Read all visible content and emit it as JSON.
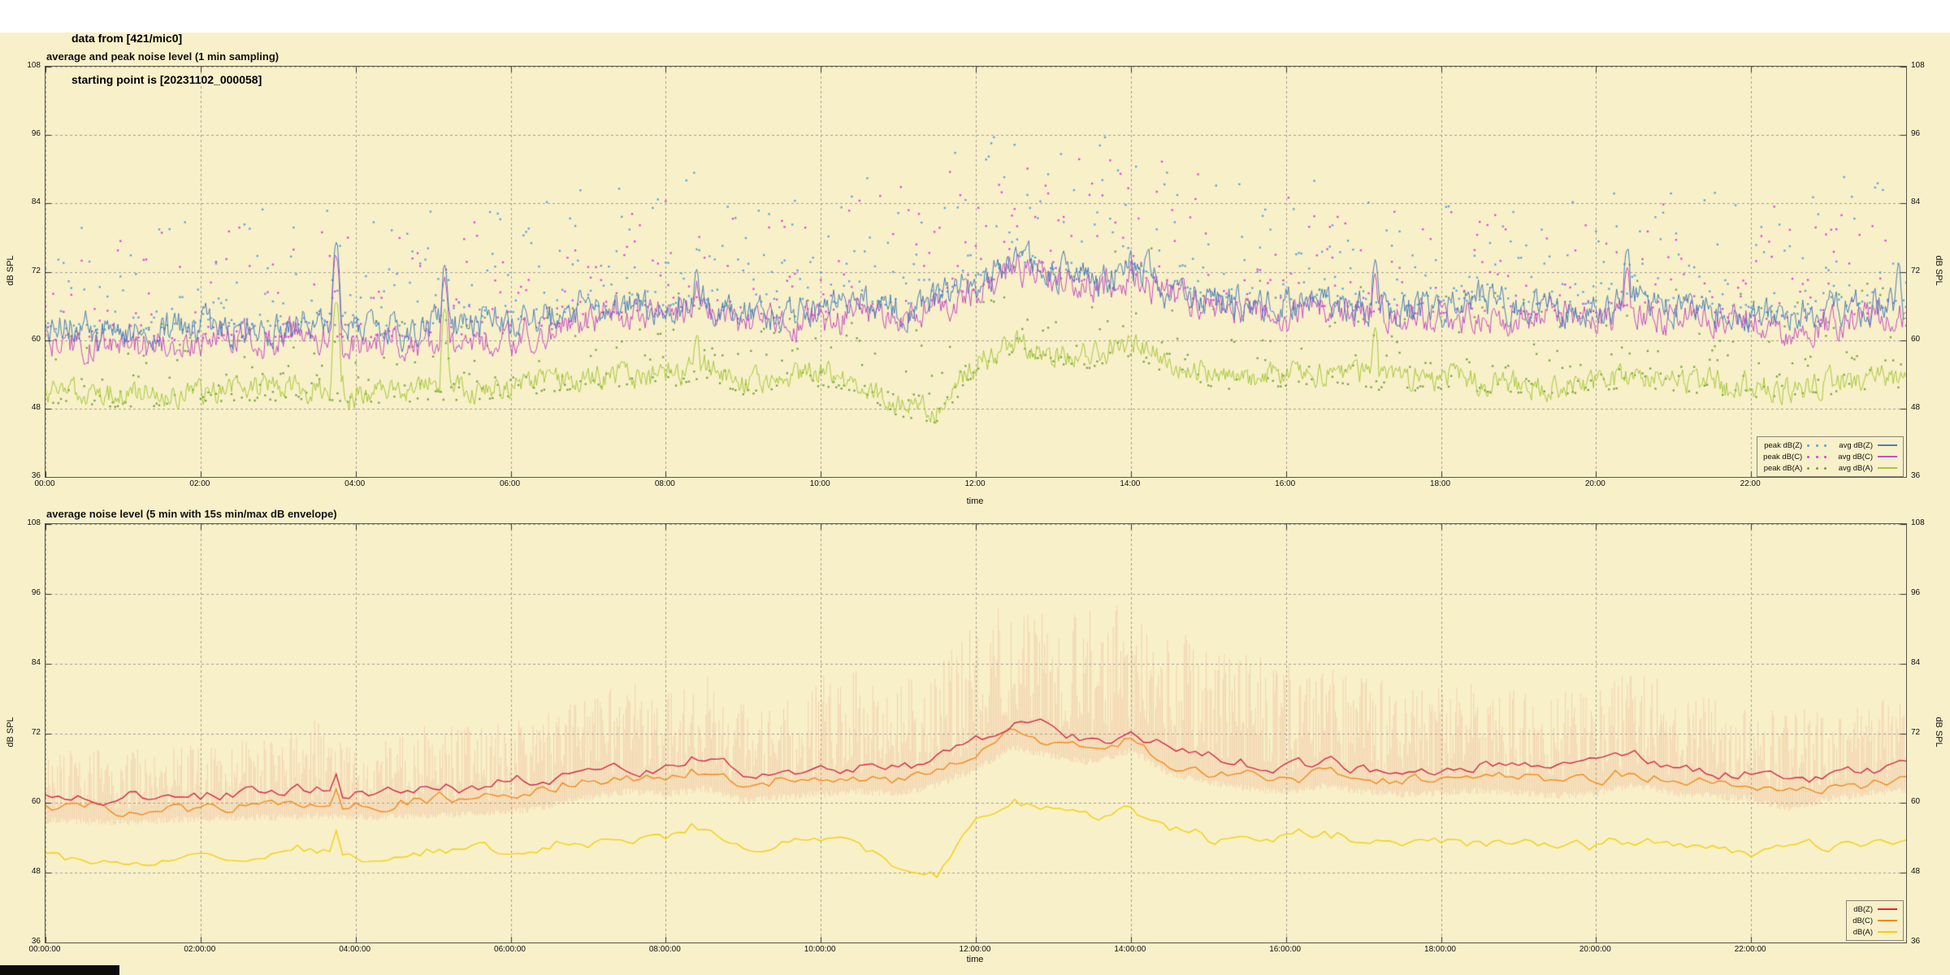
{
  "header": {
    "line1": "data from [421/mic0]",
    "line2": "starting point is [20231102_000058]"
  },
  "colors": {
    "page": "#ffffff",
    "background": "#f8f0c9",
    "grid": "#9a958a",
    "border": "#5a5648",
    "tick": "#333333",
    "status_bar": "#0c0c0c"
  },
  "chart_data": [
    {
      "type": "scatter",
      "title": "average and peak noise level (1 min sampling)",
      "xlabel": "time",
      "ylabel": "dB SPL",
      "ylabel_right": "dB SPL",
      "ylim": [
        36,
        108
      ],
      "yticks": [
        36,
        48,
        60,
        72,
        84,
        96,
        108
      ],
      "xlim_hours": [
        0,
        24
      ],
      "grid": "dashed",
      "keyframe_step_hours": 0.5,
      "xticks": {
        "hours": [
          0,
          2,
          4,
          6,
          8,
          10,
          12,
          14,
          16,
          18,
          20,
          22
        ],
        "labels": [
          "00:00",
          "02:00",
          "04:00",
          "06:00",
          "08:00",
          "10:00",
          "12:00",
          "14:00",
          "16:00",
          "18:00",
          "20:00",
          "22:00"
        ]
      },
      "series": [
        {
          "name": "peak dB(Z)",
          "kind": "scatter",
          "color": "#4f9fdf",
          "base": "avg dB(Z)",
          "min_offset": 0.5,
          "density": 0.85,
          "tail": 2.6,
          "max_keyframes": [
            80,
            80,
            81,
            82,
            82,
            83,
            84,
            86,
            83,
            83,
            84,
            85,
            86,
            87,
            88,
            89,
            88,
            90,
            86,
            87,
            88,
            89,
            90,
            92,
            95,
            97,
            96,
            95,
            97,
            94,
            92,
            90,
            88,
            88,
            87,
            86,
            86,
            86,
            86,
            86,
            87,
            90,
            88,
            87,
            86,
            87,
            88,
            90,
            90
          ]
        },
        {
          "name": "peak dB(C)",
          "kind": "scatter",
          "color": "#e03ce0",
          "base": "avg dB(C)",
          "min_offset": 0.5,
          "density": 0.7,
          "tail": 2.8,
          "max_keyframes": [
            77,
            77,
            78,
            79,
            79,
            80,
            81,
            83,
            80,
            80,
            81,
            82,
            83,
            84,
            85,
            86,
            85,
            87,
            83,
            84,
            85,
            86,
            87,
            89,
            92,
            94,
            93,
            92,
            94,
            91,
            89,
            87,
            85,
            85,
            84,
            83,
            83,
            83,
            83,
            83,
            84,
            87,
            85,
            84,
            83,
            84,
            85,
            87,
            87
          ]
        },
        {
          "name": "peak dB(A)",
          "kind": "scatter",
          "color": "#6f9f3f",
          "base": "avg dB(A)",
          "min_offset": -2.0,
          "density": 0.8,
          "tail": 2.4,
          "max_keyframes": [
            62,
            62,
            62,
            63,
            63,
            64,
            64,
            65,
            64,
            64,
            64,
            65,
            66,
            67,
            68,
            69,
            68,
            69,
            67,
            68,
            69,
            69,
            68,
            70,
            74,
            78,
            77,
            76,
            78,
            75,
            73,
            72,
            71,
            71,
            70,
            69,
            69,
            69,
            68,
            68,
            69,
            71,
            70,
            69,
            68,
            68,
            69,
            70,
            70
          ]
        },
        {
          "name": "avg dB(Z)",
          "kind": "line",
          "color": "#4a7fb5",
          "noise": 2.4,
          "keyframes": [
            61.5,
            61.3,
            61.2,
            61.4,
            61.8,
            62,
            62,
            62.3,
            62,
            62,
            62.4,
            62.5,
            63,
            64,
            65,
            66,
            65.5,
            66.5,
            64.5,
            65,
            65.5,
            66,
            65.5,
            67,
            70,
            73.5,
            72,
            71,
            73,
            69,
            67.5,
            66.5,
            66,
            67,
            66,
            65.5,
            66,
            66.5,
            66,
            65.5,
            66,
            67.5,
            66,
            65.5,
            65,
            63.5,
            65,
            66,
            66.5
          ],
          "spikes": [
            [
              3.75,
              78
            ],
            [
              5.15,
              74
            ],
            [
              8.4,
              73
            ],
            [
              17.15,
              75
            ],
            [
              20.4,
              77
            ],
            [
              23.9,
              74
            ]
          ]
        },
        {
          "name": "avg dB(C)",
          "kind": "line",
          "color": "#c44fc4",
          "noise": 2.2,
          "keyframes": [
            59.5,
            59.3,
            59.2,
            59.4,
            59.8,
            60,
            60,
            60.3,
            60,
            60,
            60.4,
            60.5,
            61,
            62,
            63.5,
            64.5,
            64,
            65,
            63,
            63.5,
            64,
            64.5,
            64,
            65.5,
            68.5,
            72,
            70.5,
            69.5,
            71.5,
            67.5,
            66,
            65,
            64.5,
            65.5,
            64.4,
            63.9,
            64.2,
            64.7,
            64.2,
            63.7,
            64.2,
            65.7,
            64.2,
            63.7,
            63.2,
            61.5,
            63.2,
            64.2,
            64.7
          ],
          "spikes": [
            [
              3.75,
              76
            ],
            [
              5.15,
              72
            ],
            [
              8.4,
              71
            ],
            [
              17.15,
              72
            ],
            [
              20.4,
              74
            ]
          ]
        },
        {
          "name": "avg dB(A)",
          "kind": "line",
          "color": "#a6c83c",
          "noise": 1.8,
          "keyframes": [
            51,
            50.6,
            50.2,
            50.5,
            51,
            51.4,
            51.4,
            51.8,
            51,
            51,
            51.5,
            51.5,
            52,
            53,
            53.5,
            54,
            53.5,
            55.5,
            52.5,
            53,
            54,
            53,
            48.5,
            47.5,
            56,
            60,
            58,
            57,
            59,
            56,
            54,
            53,
            54,
            54.5,
            53.5,
            53,
            53.5,
            53,
            52.5,
            52.5,
            53,
            54,
            53,
            52.5,
            52,
            52,
            52.5,
            53,
            53
          ],
          "spikes": [
            [
              3.75,
              68
            ],
            [
              5.15,
              66
            ],
            [
              8.4,
              62
            ],
            [
              17.15,
              63
            ]
          ]
        }
      ],
      "legend": {
        "columns": [
          [
            {
              "label": "peak dB(Z)",
              "color": "#4f9fdf",
              "marker": "points"
            },
            {
              "label": "peak dB(C)",
              "color": "#e03ce0",
              "marker": "points"
            },
            {
              "label": "peak dB(A)",
              "color": "#6f9f3f",
              "marker": "points"
            }
          ],
          [
            {
              "label": "avg dB(Z)",
              "color": "#4a7fb5",
              "marker": "line"
            },
            {
              "label": "avg dB(C)",
              "color": "#c44fc4",
              "marker": "line"
            },
            {
              "label": "avg dB(A)",
              "color": "#a6c83c",
              "marker": "line"
            }
          ]
        ]
      }
    },
    {
      "type": "line",
      "title": "average noise level (5 min with 15s min/max dB envelope)",
      "xlabel": "time",
      "ylabel": "dB SPL",
      "ylabel_right": "dB SPL",
      "ylim": [
        36,
        108
      ],
      "yticks": [
        36,
        48,
        60,
        72,
        84,
        96,
        108
      ],
      "xlim_hours": [
        0,
        24
      ],
      "grid": "dashed",
      "keyframe_step_hours": 0.5,
      "xticks": {
        "hours": [
          0,
          2,
          4,
          6,
          8,
          10,
          12,
          14,
          16,
          18,
          20,
          22
        ],
        "labels": [
          "00:00:00",
          "02:00:00",
          "04:00:00",
          "06:00:00",
          "08:00:00",
          "10:00:00",
          "12:00:00",
          "14:00:00",
          "16:00:00",
          "18:00:00",
          "20:00:00",
          "22:00:00"
        ]
      },
      "series": [
        {
          "name": "min/max envelope",
          "kind": "envelope",
          "color": "rgba(232,150,124,0.33)",
          "min_keyframes": [
            57,
            56.8,
            56.7,
            56.9,
            57.3,
            57.5,
            57.5,
            57.8,
            57.5,
            57.5,
            57.9,
            58,
            58.5,
            59.5,
            61,
            62,
            61.5,
            62.5,
            60.5,
            61,
            61.5,
            62,
            61.5,
            63,
            66,
            69.5,
            68,
            67,
            69,
            65,
            63.5,
            62.5,
            62,
            63,
            61.9,
            61.4,
            61.7,
            62.2,
            61.7,
            61.2,
            61.7,
            63.2,
            61.7,
            61.2,
            60.7,
            59,
            60.7,
            61.7,
            62.2
          ],
          "max_keyframes": [
            70,
            69.5,
            69,
            70,
            70,
            71,
            71,
            75,
            71,
            71,
            74,
            73,
            74,
            76,
            79,
            81,
            79,
            83,
            77,
            78,
            82,
            83,
            81,
            85,
            91,
            96,
            94,
            93,
            95,
            90,
            88,
            86,
            84,
            84,
            82,
            80,
            80,
            81,
            80,
            79,
            80,
            84,
            80,
            78,
            76,
            76,
            77,
            78,
            78
          ]
        },
        {
          "name": "dB(Z)",
          "kind": "line",
          "color": "#d02a48",
          "noise": 0.9,
          "keyframes": [
            61.5,
            61.3,
            61.2,
            61.4,
            61.8,
            62,
            62,
            62.3,
            62,
            62,
            62.4,
            62.5,
            63,
            64,
            65,
            66,
            65.5,
            66.5,
            64.5,
            65,
            65.5,
            66,
            65.5,
            67,
            70,
            73.5,
            72,
            71,
            73,
            69,
            67.5,
            66.5,
            66,
            67,
            66,
            65.5,
            66,
            66.5,
            66,
            65.5,
            66,
            67.5,
            66,
            65.5,
            65,
            63.5,
            65,
            66,
            66.5
          ],
          "spikes": [
            [
              3.75,
              65.5
            ],
            [
              8.35,
              70
            ],
            [
              13.1,
              74.5
            ]
          ]
        },
        {
          "name": "dB(C)",
          "kind": "line",
          "color": "#f28a1e",
          "noise": 0.85,
          "keyframes": [
            59.5,
            59.3,
            59.2,
            59.4,
            59.8,
            60,
            60,
            60.3,
            60,
            60,
            60.4,
            60.5,
            61,
            62,
            63.5,
            64.5,
            64,
            65,
            63,
            63.5,
            64,
            64.5,
            64,
            65.5,
            68.5,
            72,
            70.5,
            69.5,
            71.5,
            67.5,
            66,
            65,
            64.5,
            65.5,
            64.4,
            63.9,
            64.2,
            64.7,
            64.2,
            63.7,
            64.2,
            65.7,
            64.2,
            63.7,
            63.2,
            61.5,
            63.2,
            64.2,
            64.7
          ],
          "spikes": [
            [
              3.75,
              63
            ],
            [
              8.35,
              68
            ]
          ]
        },
        {
          "name": "dB(A)",
          "kind": "line",
          "color": "#f2cf0e",
          "noise": 0.8,
          "keyframes": [
            51,
            50.6,
            50.2,
            50.5,
            51,
            51.4,
            51.4,
            51.8,
            51,
            51,
            51.5,
            51.5,
            52,
            53,
            53.5,
            54,
            53.5,
            55.5,
            52.5,
            53,
            54,
            53,
            48.5,
            47.5,
            56,
            60,
            58,
            57,
            59,
            56,
            54,
            53,
            54,
            54.5,
            53.5,
            53,
            53.5,
            53,
            52.5,
            52.5,
            53,
            54,
            53,
            52.5,
            52,
            52,
            52.5,
            53,
            53
          ],
          "spikes": [
            [
              3.75,
              56.5
            ],
            [
              8.35,
              57.5
            ]
          ]
        }
      ],
      "legend": {
        "columns": [
          [
            {
              "label": "dB(Z)",
              "color": "#d02a48",
              "marker": "line"
            },
            {
              "label": "dB(C)",
              "color": "#f28a1e",
              "marker": "line"
            },
            {
              "label": "dB(A)",
              "color": "#f2cf0e",
              "marker": "line"
            }
          ]
        ]
      }
    }
  ]
}
